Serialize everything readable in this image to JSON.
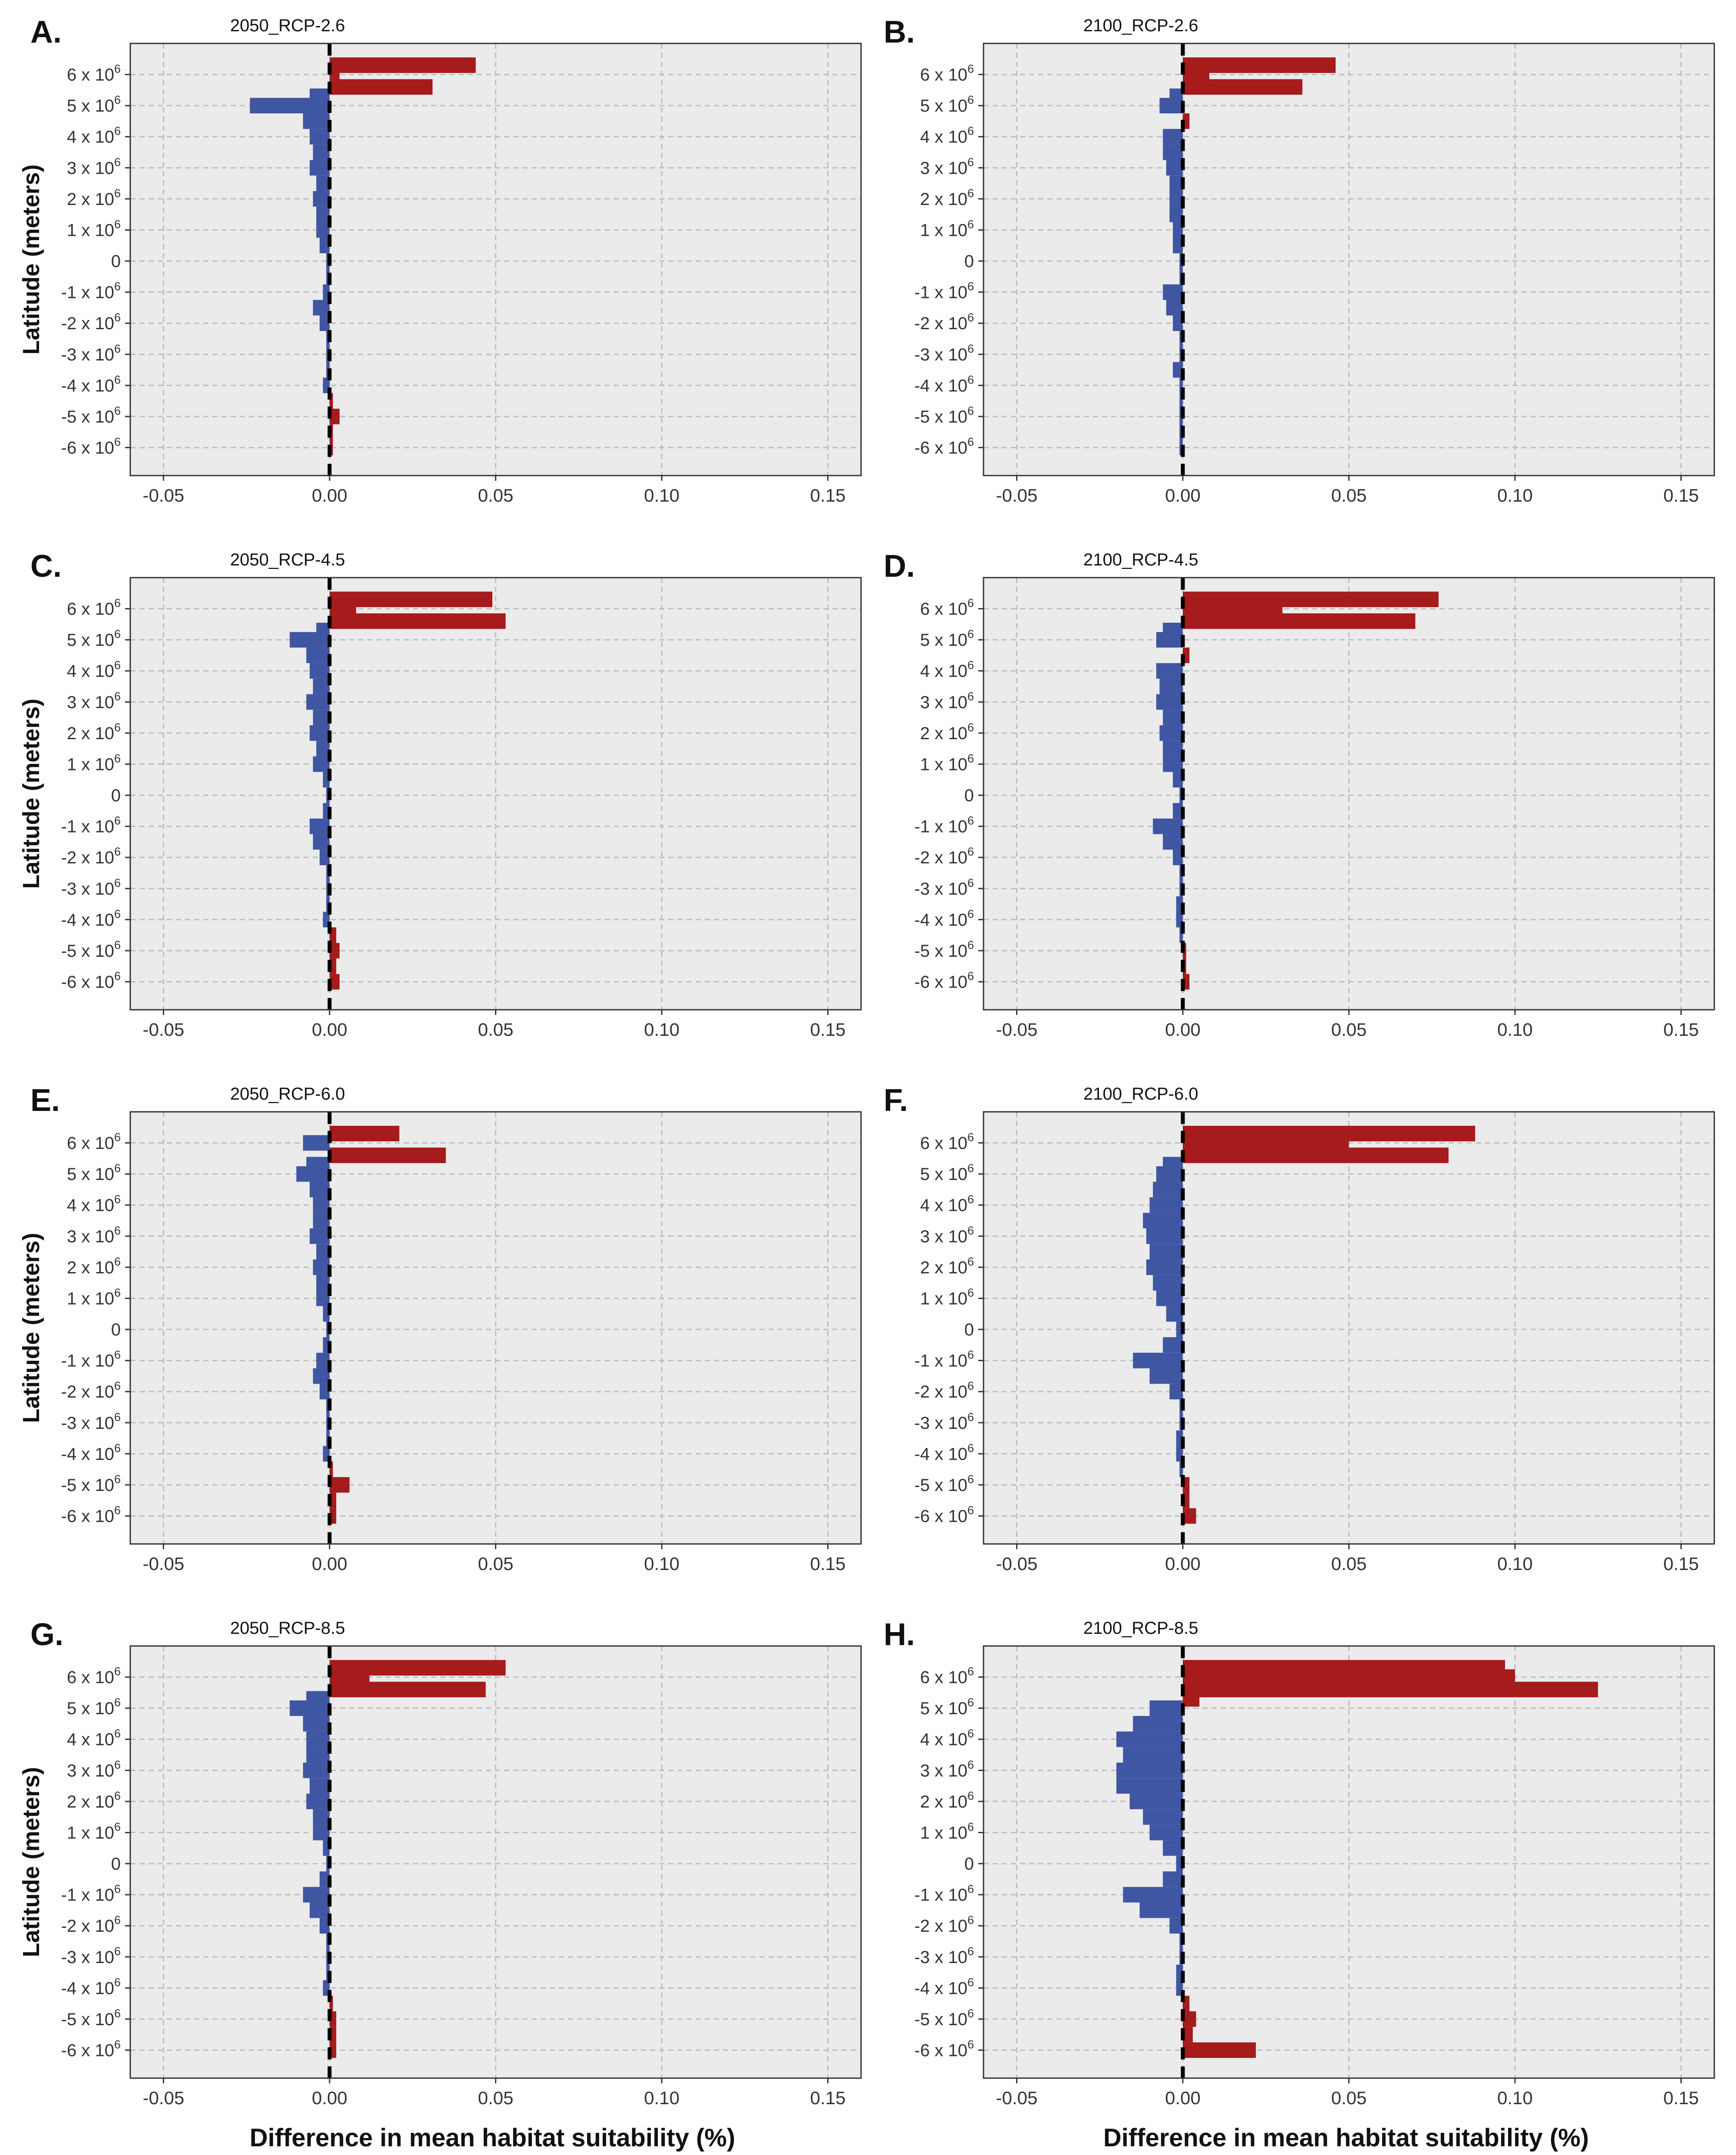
{
  "figure": {
    "x_axis_title": "Difference in mean habitat suitability (%)",
    "y_axis_title": "Latitude (meters)"
  },
  "chart_data": [
    {
      "id": "A",
      "letter": "A.",
      "title": "2050_RCP-2.6",
      "type": "bar",
      "orientation": "horizontal",
      "xlim": [
        -0.06,
        0.16
      ],
      "ylim": [
        -6.9,
        7.0
      ],
      "xticks": [
        -0.05,
        0.0,
        0.05,
        0.1,
        0.15
      ],
      "xtick_labels": [
        "-0.05",
        "0.00",
        "0.05",
        "0.10",
        "0.15"
      ],
      "yticks": [
        6,
        5,
        4,
        3,
        2,
        1,
        0,
        -1,
        -2,
        -3,
        -4,
        -5,
        -6
      ],
      "ytick_labels": [
        "6 x 10^6",
        "5 x 10^6",
        "4 x 10^6",
        "3 x 10^6",
        "2 x 10^6",
        "1 x 10^6",
        "0",
        "-1 x 10^6",
        "-2 x 10^6",
        "-3 x 10^6",
        "-4 x 10^6",
        "-5 x 10^6",
        "-6 x 10^6"
      ],
      "colors": {
        "positive": "#a61b1b",
        "negative": "#3f56a3"
      },
      "series": [
        {
          "name": "difference",
          "lat_million_m": [
            6.3,
            6.0,
            5.6,
            5.3,
            5.0,
            4.5,
            4.0,
            3.5,
            3.0,
            2.5,
            2.0,
            1.5,
            1.0,
            0.5,
            0.0,
            -0.5,
            -1.0,
            -1.5,
            -2.0,
            -2.5,
            -3.0,
            -3.5,
            -4.0,
            -4.5,
            -5.0,
            -5.5,
            -6.0
          ],
          "values": [
            0.044,
            0.003,
            0.031,
            -0.006,
            -0.024,
            -0.008,
            -0.006,
            -0.005,
            -0.006,
            -0.004,
            -0.005,
            -0.004,
            -0.004,
            -0.003,
            -0.001,
            -0.001,
            -0.002,
            -0.005,
            -0.003,
            -0.001,
            -0.001,
            -0.001,
            -0.002,
            0.001,
            0.003,
            0.001,
            0.001
          ]
        }
      ]
    },
    {
      "id": "B",
      "letter": "B.",
      "title": "2100_RCP-2.6",
      "type": "bar",
      "orientation": "horizontal",
      "xlim": [
        -0.06,
        0.16
      ],
      "ylim": [
        -6.9,
        7.0
      ],
      "xticks": [
        -0.05,
        0.0,
        0.05,
        0.1,
        0.15
      ],
      "xtick_labels": [
        "-0.05",
        "0.00",
        "0.05",
        "0.10",
        "0.15"
      ],
      "yticks": [
        6,
        5,
        4,
        3,
        2,
        1,
        0,
        -1,
        -2,
        -3,
        -4,
        -5,
        -6
      ],
      "ytick_labels": [
        "6 x 10^6",
        "5 x 10^6",
        "4 x 10^6",
        "3 x 10^6",
        "2 x 10^6",
        "1 x 10^6",
        "0",
        "-1 x 10^6",
        "-2 x 10^6",
        "-3 x 10^6",
        "-4 x 10^6",
        "-5 x 10^6",
        "-6 x 10^6"
      ],
      "colors": {
        "positive": "#a61b1b",
        "negative": "#3f56a3"
      },
      "series": [
        {
          "name": "difference",
          "lat_million_m": [
            6.3,
            6.0,
            5.6,
            5.3,
            5.0,
            4.5,
            4.0,
            3.5,
            3.0,
            2.5,
            2.0,
            1.5,
            1.0,
            0.5,
            0.0,
            -0.5,
            -1.0,
            -1.5,
            -2.0,
            -2.5,
            -3.0,
            -3.5,
            -4.0,
            -4.5,
            -5.0,
            -5.5,
            -6.0
          ],
          "values": [
            0.046,
            0.008,
            0.036,
            -0.004,
            -0.007,
            0.002,
            -0.006,
            -0.006,
            -0.005,
            -0.004,
            -0.004,
            -0.004,
            -0.003,
            -0.003,
            -0.001,
            -0.001,
            -0.006,
            -0.005,
            -0.003,
            -0.001,
            -0.001,
            -0.003,
            -0.001,
            -0.001,
            -0.001,
            -0.001,
            -0.001
          ]
        }
      ]
    },
    {
      "id": "C",
      "letter": "C.",
      "title": "2050_RCP-4.5",
      "type": "bar",
      "orientation": "horizontal",
      "xlim": [
        -0.06,
        0.16
      ],
      "ylim": [
        -6.9,
        7.0
      ],
      "xticks": [
        -0.05,
        0.0,
        0.05,
        0.1,
        0.15
      ],
      "xtick_labels": [
        "-0.05",
        "0.00",
        "0.05",
        "0.10",
        "0.15"
      ],
      "yticks": [
        6,
        5,
        4,
        3,
        2,
        1,
        0,
        -1,
        -2,
        -3,
        -4,
        -5,
        -6
      ],
      "ytick_labels": [
        "6 x 10^6",
        "5 x 10^6",
        "4 x 10^6",
        "3 x 10^6",
        "2 x 10^6",
        "1 x 10^6",
        "0",
        "-1 x 10^6",
        "-2 x 10^6",
        "-3 x 10^6",
        "-4 x 10^6",
        "-5 x 10^6",
        "-6 x 10^6"
      ],
      "colors": {
        "positive": "#a61b1b",
        "negative": "#3f56a3"
      },
      "series": [
        {
          "name": "difference",
          "lat_million_m": [
            6.3,
            6.0,
            5.6,
            5.3,
            5.0,
            4.5,
            4.0,
            3.5,
            3.0,
            2.5,
            2.0,
            1.5,
            1.0,
            0.5,
            0.0,
            -0.5,
            -1.0,
            -1.5,
            -2.0,
            -2.5,
            -3.0,
            -3.5,
            -4.0,
            -4.5,
            -5.0,
            -5.5,
            -6.0
          ],
          "values": [
            0.049,
            0.008,
            0.053,
            -0.004,
            -0.012,
            -0.007,
            -0.006,
            -0.005,
            -0.007,
            -0.005,
            -0.006,
            -0.004,
            -0.005,
            -0.002,
            -0.001,
            -0.002,
            -0.006,
            -0.005,
            -0.003,
            -0.001,
            -0.001,
            -0.001,
            -0.002,
            0.002,
            0.003,
            0.002,
            0.003
          ]
        }
      ]
    },
    {
      "id": "D",
      "letter": "D.",
      "title": "2100_RCP-4.5",
      "type": "bar",
      "orientation": "horizontal",
      "xlim": [
        -0.06,
        0.16
      ],
      "ylim": [
        -6.9,
        7.0
      ],
      "xticks": [
        -0.05,
        0.0,
        0.05,
        0.1,
        0.15
      ],
      "xtick_labels": [
        "-0.05",
        "0.00",
        "0.05",
        "0.10",
        "0.15"
      ],
      "yticks": [
        6,
        5,
        4,
        3,
        2,
        1,
        0,
        -1,
        -2,
        -3,
        -4,
        -5,
        -6
      ],
      "ytick_labels": [
        "6 x 10^6",
        "5 x 10^6",
        "4 x 10^6",
        "3 x 10^6",
        "2 x 10^6",
        "1 x 10^6",
        "0",
        "-1 x 10^6",
        "-2 x 10^6",
        "-3 x 10^6",
        "-4 x 10^6",
        "-5 x 10^6",
        "-6 x 10^6"
      ],
      "colors": {
        "positive": "#a61b1b",
        "negative": "#3f56a3"
      },
      "series": [
        {
          "name": "difference",
          "lat_million_m": [
            6.3,
            6.0,
            5.6,
            5.3,
            5.0,
            4.5,
            4.0,
            3.5,
            3.0,
            2.5,
            2.0,
            1.5,
            1.0,
            0.5,
            0.0,
            -0.5,
            -1.0,
            -1.5,
            -2.0,
            -2.5,
            -3.0,
            -3.5,
            -4.0,
            -4.5,
            -5.0,
            -5.5,
            -6.0
          ],
          "values": [
            0.077,
            0.03,
            0.07,
            -0.006,
            -0.008,
            0.002,
            -0.008,
            -0.007,
            -0.008,
            -0.006,
            -0.007,
            -0.006,
            -0.006,
            -0.003,
            -0.001,
            -0.003,
            -0.009,
            -0.006,
            -0.003,
            -0.001,
            -0.001,
            -0.002,
            -0.002,
            -0.001,
            0.001,
            0.001,
            0.002
          ]
        }
      ]
    },
    {
      "id": "E",
      "letter": "E.",
      "title": "2050_RCP-6.0",
      "type": "bar",
      "orientation": "horizontal",
      "xlim": [
        -0.06,
        0.16
      ],
      "ylim": [
        -6.9,
        7.0
      ],
      "xticks": [
        -0.05,
        0.0,
        0.05,
        0.1,
        0.15
      ],
      "xtick_labels": [
        "-0.05",
        "0.00",
        "0.05",
        "0.10",
        "0.15"
      ],
      "yticks": [
        6,
        5,
        4,
        3,
        2,
        1,
        0,
        -1,
        -2,
        -3,
        -4,
        -5,
        -6
      ],
      "ytick_labels": [
        "6 x 10^6",
        "5 x 10^6",
        "4 x 10^6",
        "3 x 10^6",
        "2 x 10^6",
        "1 x 10^6",
        "0",
        "-1 x 10^6",
        "-2 x 10^6",
        "-3 x 10^6",
        "-4 x 10^6",
        "-5 x 10^6",
        "-6 x 10^6"
      ],
      "colors": {
        "positive": "#a61b1b",
        "negative": "#3f56a3"
      },
      "series": [
        {
          "name": "difference",
          "lat_million_m": [
            6.3,
            6.0,
            5.6,
            5.3,
            5.0,
            4.5,
            4.0,
            3.5,
            3.0,
            2.5,
            2.0,
            1.5,
            1.0,
            0.5,
            0.0,
            -0.5,
            -1.0,
            -1.5,
            -2.0,
            -2.5,
            -3.0,
            -3.5,
            -4.0,
            -4.5,
            -5.0,
            -5.5,
            -6.0
          ],
          "values": [
            0.021,
            -0.008,
            0.035,
            -0.007,
            -0.01,
            -0.006,
            -0.005,
            -0.005,
            -0.006,
            -0.004,
            -0.005,
            -0.004,
            -0.004,
            -0.002,
            -0.001,
            -0.002,
            -0.004,
            -0.005,
            -0.003,
            -0.001,
            -0.001,
            -0.001,
            -0.002,
            0.001,
            0.006,
            0.002,
            0.002
          ]
        }
      ]
    },
    {
      "id": "F",
      "letter": "F.",
      "title": "2100_RCP-6.0",
      "type": "bar",
      "orientation": "horizontal",
      "xlim": [
        -0.06,
        0.16
      ],
      "ylim": [
        -6.9,
        7.0
      ],
      "xticks": [
        -0.05,
        0.0,
        0.05,
        0.1,
        0.15
      ],
      "xtick_labels": [
        "-0.05",
        "0.00",
        "0.05",
        "0.10",
        "0.15"
      ],
      "yticks": [
        6,
        5,
        4,
        3,
        2,
        1,
        0,
        -1,
        -2,
        -3,
        -4,
        -5,
        -6
      ],
      "ytick_labels": [
        "6 x 10^6",
        "5 x 10^6",
        "4 x 10^6",
        "3 x 10^6",
        "2 x 10^6",
        "1 x 10^6",
        "0",
        "-1 x 10^6",
        "-2 x 10^6",
        "-3 x 10^6",
        "-4 x 10^6",
        "-5 x 10^6",
        "-6 x 10^6"
      ],
      "colors": {
        "positive": "#a61b1b",
        "negative": "#3f56a3"
      },
      "series": [
        {
          "name": "difference",
          "lat_million_m": [
            6.3,
            6.0,
            5.6,
            5.3,
            5.0,
            4.5,
            4.0,
            3.5,
            3.0,
            2.5,
            2.0,
            1.5,
            1.0,
            0.5,
            0.0,
            -0.5,
            -1.0,
            -1.5,
            -2.0,
            -2.5,
            -3.0,
            -3.5,
            -4.0,
            -4.5,
            -5.0,
            -5.5,
            -6.0
          ],
          "values": [
            0.088,
            0.05,
            0.08,
            -0.006,
            -0.008,
            -0.009,
            -0.01,
            -0.012,
            -0.011,
            -0.01,
            -0.011,
            -0.009,
            -0.008,
            -0.005,
            -0.002,
            -0.006,
            -0.015,
            -0.01,
            -0.004,
            -0.001,
            -0.001,
            -0.002,
            -0.002,
            -0.001,
            0.002,
            0.002,
            0.004
          ]
        }
      ]
    },
    {
      "id": "G",
      "letter": "G.",
      "title": "2050_RCP-8.5",
      "type": "bar",
      "orientation": "horizontal",
      "xlim": [
        -0.06,
        0.16
      ],
      "ylim": [
        -6.9,
        7.0
      ],
      "xticks": [
        -0.05,
        0.0,
        0.05,
        0.1,
        0.15
      ],
      "xtick_labels": [
        "-0.05",
        "0.00",
        "0.05",
        "0.10",
        "0.15"
      ],
      "yticks": [
        6,
        5,
        4,
        3,
        2,
        1,
        0,
        -1,
        -2,
        -3,
        -4,
        -5,
        -6
      ],
      "ytick_labels": [
        "6 x 10^6",
        "5 x 10^6",
        "4 x 10^6",
        "3 x 10^6",
        "2 x 10^6",
        "1 x 10^6",
        "0",
        "-1 x 10^6",
        "-2 x 10^6",
        "-3 x 10^6",
        "-4 x 10^6",
        "-5 x 10^6",
        "-6 x 10^6"
      ],
      "colors": {
        "positive": "#a61b1b",
        "negative": "#3f56a3"
      },
      "series": [
        {
          "name": "difference",
          "lat_million_m": [
            6.3,
            6.0,
            5.6,
            5.3,
            5.0,
            4.5,
            4.0,
            3.5,
            3.0,
            2.5,
            2.0,
            1.5,
            1.0,
            0.5,
            0.0,
            -0.5,
            -1.0,
            -1.5,
            -2.0,
            -2.5,
            -3.0,
            -3.5,
            -4.0,
            -4.5,
            -5.0,
            -5.5,
            -6.0
          ],
          "values": [
            0.053,
            0.012,
            0.047,
            -0.007,
            -0.012,
            -0.008,
            -0.007,
            -0.007,
            -0.008,
            -0.006,
            -0.007,
            -0.005,
            -0.005,
            -0.002,
            -0.001,
            -0.003,
            -0.008,
            -0.006,
            -0.003,
            -0.001,
            -0.001,
            -0.001,
            -0.002,
            0.001,
            0.002,
            0.002,
            0.002
          ]
        }
      ]
    },
    {
      "id": "H",
      "letter": "H.",
      "title": "2100_RCP-8.5",
      "type": "bar",
      "orientation": "horizontal",
      "xlim": [
        -0.06,
        0.16
      ],
      "ylim": [
        -6.9,
        7.0
      ],
      "xticks": [
        -0.05,
        0.0,
        0.05,
        0.1,
        0.15
      ],
      "xtick_labels": [
        "-0.05",
        "0.00",
        "0.05",
        "0.10",
        "0.15"
      ],
      "yticks": [
        6,
        5,
        4,
        3,
        2,
        1,
        0,
        -1,
        -2,
        -3,
        -4,
        -5,
        -6
      ],
      "ytick_labels": [
        "6 x 10^6",
        "5 x 10^6",
        "4 x 10^6",
        "3 x 10^6",
        "2 x 10^6",
        "1 x 10^6",
        "0",
        "-1 x 10^6",
        "-2 x 10^6",
        "-3 x 10^6",
        "-4 x 10^6",
        "-5 x 10^6",
        "-6 x 10^6"
      ],
      "colors": {
        "positive": "#a61b1b",
        "negative": "#3f56a3"
      },
      "series": [
        {
          "name": "difference",
          "lat_million_m": [
            6.3,
            6.0,
            5.6,
            5.3,
            5.0,
            4.5,
            4.0,
            3.5,
            3.0,
            2.5,
            2.0,
            1.5,
            1.0,
            0.5,
            0.0,
            -0.5,
            -1.0,
            -1.5,
            -2.0,
            -2.5,
            -3.0,
            -3.5,
            -4.0,
            -4.5,
            -5.0,
            -5.5,
            -6.0
          ],
          "values": [
            0.097,
            0.1,
            0.125,
            0.005,
            -0.01,
            -0.015,
            -0.02,
            -0.018,
            -0.02,
            -0.02,
            -0.016,
            -0.012,
            -0.01,
            -0.006,
            -0.002,
            -0.006,
            -0.018,
            -0.013,
            -0.004,
            -0.001,
            -0.001,
            -0.002,
            -0.002,
            0.002,
            0.004,
            0.003,
            0.022
          ]
        }
      ]
    }
  ]
}
